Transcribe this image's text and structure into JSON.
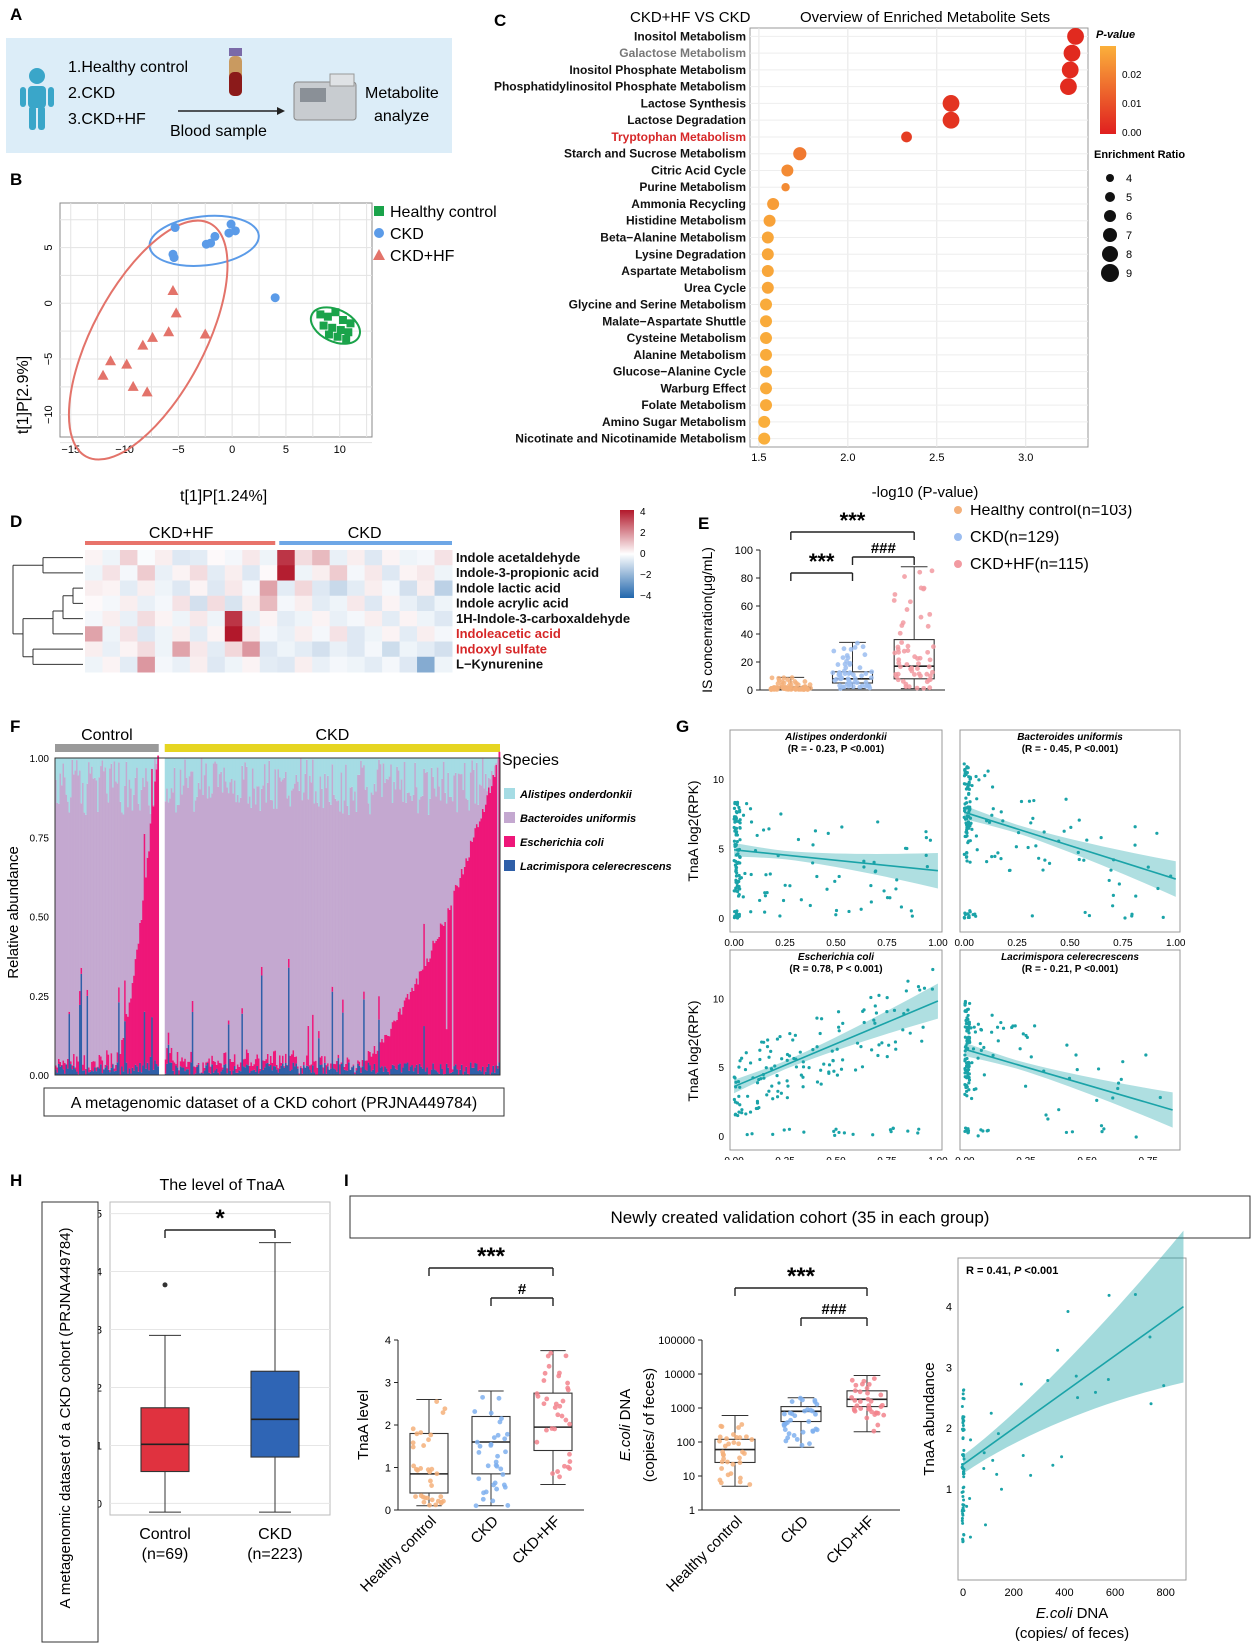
{
  "panel_labels": [
    "A",
    "B",
    "C",
    "D",
    "E",
    "F",
    "G",
    "H",
    "I"
  ],
  "panelA": {
    "groups": [
      "1.Healthy control",
      "2.CKD",
      "3.CKD+HF"
    ],
    "arrow_label": "Blood sample",
    "result_label_1": "Metabolite",
    "result_label_2": "analyze",
    "colors": {
      "background": "#dcedf8",
      "person": "#3aa6c9",
      "blood": "#8b1a1a"
    }
  },
  "chart_data": [
    {
      "id": "B",
      "type": "scatter",
      "title": "",
      "xlabel": "t[1]P[1.24%]",
      "ylabel": "t[1]P[2.9%]",
      "xlim": [
        -16,
        13
      ],
      "ylim": [
        -12,
        9
      ],
      "xticks": [
        -15,
        -10,
        -5,
        0,
        5,
        10
      ],
      "yticks": [
        -10,
        -5,
        0,
        5
      ],
      "grid": true,
      "legend": "right",
      "series": [
        {
          "name": "Healthy control",
          "color": "#1aa34a",
          "marker": "square",
          "x": [
            8.2,
            8.9,
            9.6,
            10.3,
            11.0,
            8.5,
            9.3,
            10.1,
            10.8,
            9.0,
            9.8,
            10.6
          ],
          "y": [
            -1.0,
            -1.2,
            -0.8,
            -1.5,
            -1.8,
            -2.0,
            -2.2,
            -2.4,
            -2.6,
            -2.8,
            -3.0,
            -3.2
          ]
        },
        {
          "name": "CKD",
          "color": "#5b9be8",
          "marker": "circle",
          "x": [
            -5.3,
            -5.5,
            -5.4,
            -2.4,
            -1.6,
            -0.3,
            -0.1,
            0.3,
            -2.0,
            4.0
          ],
          "y": [
            6.8,
            4.4,
            4.1,
            5.3,
            6.0,
            6.3,
            7.1,
            6.5,
            5.4,
            0.5
          ]
        },
        {
          "name": "CKD+HF",
          "color": "#e3736a",
          "marker": "triangle",
          "x": [
            -12.0,
            -11.3,
            -9.8,
            -9.2,
            -8.3,
            -7.9,
            -7.4,
            -5.9,
            -5.5,
            -5.2,
            -2.5
          ],
          "y": [
            -6.5,
            -5.2,
            -5.5,
            -7.5,
            -3.8,
            -8.0,
            -3.1,
            -2.6,
            1.1,
            -0.9,
            -2.8
          ]
        }
      ]
    },
    {
      "id": "C",
      "type": "scatter",
      "title": "CKD+HF VS CKD",
      "subtitle": "Overview of Enriched Metabolite Sets",
      "xlabel": "-log10 (P-value)",
      "xlim": [
        1.45,
        3.35
      ],
      "xticks": [
        1.5,
        2.0,
        2.5,
        3.0
      ],
      "grid": true,
      "legend": "right",
      "legend_pvalue_title": "P-value",
      "legend_pvalue_ticks": [
        "0.02",
        "0.01",
        "0.00"
      ],
      "legend_size_title": "Enrichment Ratio",
      "legend_size_values": [
        4,
        5,
        6,
        7,
        8,
        9
      ],
      "categories": [
        "Inositol Metabolism",
        "Galactose Metabolism",
        "Inositol Phosphate Metabolism",
        "Phosphatidylinositol Phosphate Metabolism",
        "Lactose Synthesis",
        "Lactose Degradation",
        "Tryptophan Metabolism",
        "Starch and Sucrose Metabolism",
        "Citric Acid Cycle",
        "Purine Metabolism",
        "Ammonia Recycling",
        "Histidine Metabolism",
        "Beta−Alanine Metabolism",
        "Lysine Degradation",
        "Aspartate Metabolism",
        "Urea Cycle",
        "Glycine and Serine Metabolism",
        "Malate−Aspartate Shuttle",
        "Cysteine Metabolism",
        "Alanine Metabolism",
        "Glucose−Alanine Cycle",
        "Warburg Effect",
        "Folate Metabolism",
        "Amino Sugar Metabolism",
        "Nicotinate and Nicotinamide Metabolism"
      ],
      "highlight": [
        "Tryptophan Metabolism"
      ],
      "grey": [
        "Galactose Metabolism"
      ],
      "x": [
        3.28,
        3.26,
        3.25,
        3.24,
        2.58,
        2.58,
        2.33,
        1.73,
        1.66,
        1.65,
        1.58,
        1.56,
        1.55,
        1.55,
        1.55,
        1.55,
        1.54,
        1.54,
        1.54,
        1.54,
        1.54,
        1.54,
        1.54,
        1.53,
        1.53
      ],
      "ratio": [
        7,
        7,
        7,
        7,
        7,
        7,
        4.5,
        5.5,
        5,
        3.5,
        5,
        5,
        5,
        5,
        5,
        5,
        5,
        5,
        5,
        5,
        5,
        5,
        5,
        5,
        5
      ],
      "pvalue": [
        0.0005,
        0.0005,
        0.0006,
        0.0006,
        0.0026,
        0.0026,
        0.0047,
        0.018,
        0.022,
        0.022,
        0.026,
        0.027,
        0.028,
        0.028,
        0.028,
        0.028,
        0.029,
        0.029,
        0.029,
        0.029,
        0.029,
        0.029,
        0.029,
        0.03,
        0.03
      ]
    },
    {
      "id": "D",
      "type": "heatmap",
      "column_groups": [
        {
          "name": "CKD+HF",
          "color": "#e8736b"
        },
        {
          "name": "CKD",
          "color": "#6ea7e6"
        }
      ],
      "rows": [
        "Indole acetaldehyde",
        "Indole-3-propionic acid",
        "Indole lactic acid",
        "Indole acrylic acid",
        "1H-Indole-3-carboxaldehyde",
        "Indoleacetic acid",
        "Indoxyl sulfate",
        "L−Kynurenine"
      ],
      "highlight_rows": [
        "Indoleacetic acid",
        "Indoxyl sulfate"
      ],
      "colorbar": [
        -4,
        -2,
        0,
        2,
        4
      ],
      "values": [
        [
          0.2,
          -0.3,
          0.8,
          -0.1,
          0.3,
          -0.6,
          -0.5,
          0.1,
          -0.2,
          0.4,
          -0.3,
          3.5,
          0.6,
          1.2,
          -0.4,
          0.3,
          -0.6,
          0.2,
          -0.3,
          -0.2,
          0.5
        ],
        [
          -0.3,
          0.5,
          -0.2,
          0.9,
          -0.4,
          0.2,
          0.6,
          -0.5,
          0.3,
          -0.6,
          0.1,
          3.9,
          -0.3,
          0.3,
          0.9,
          -0.2,
          0.4,
          -0.6,
          0.2,
          0.4,
          -0.3
        ],
        [
          0.3,
          0.2,
          -0.5,
          0.3,
          -0.3,
          -0.6,
          0.2,
          -0.6,
          0.4,
          -0.2,
          1.6,
          -0.5,
          0.7,
          -0.6,
          -1.0,
          -0.5,
          0.3,
          -0.2,
          -0.8,
          0.3,
          -1.2
        ],
        [
          0.1,
          -0.2,
          0.3,
          -0.4,
          -0.2,
          0.5,
          -0.8,
          0.6,
          -0.7,
          0.3,
          1.2,
          -0.2,
          0.3,
          -0.5,
          -0.3,
          0.4,
          -0.6,
          0.2,
          -0.4,
          -0.7,
          -0.3
        ],
        [
          -0.2,
          0.3,
          -0.4,
          0.6,
          0.2,
          -0.3,
          0.4,
          -0.3,
          3.5,
          -0.4,
          0.2,
          -0.5,
          -0.3,
          0.2,
          -0.4,
          -0.2,
          0.3,
          -0.5,
          0.2,
          -0.3,
          -0.6
        ],
        [
          1.6,
          -0.3,
          0.5,
          -0.6,
          -0.3,
          0.3,
          -0.5,
          0.2,
          4.0,
          0.4,
          -0.2,
          -0.4,
          0.3,
          -0.2,
          0.5,
          -0.6,
          -0.3,
          0.2,
          -0.5,
          0.3,
          -0.2
        ],
        [
          0.3,
          -0.4,
          0.2,
          0.6,
          -0.3,
          1.6,
          0.4,
          -0.5,
          0.7,
          1.8,
          -0.6,
          -0.3,
          -0.5,
          -0.8,
          -0.4,
          -0.6,
          -0.2,
          -0.9,
          -0.3,
          -0.5,
          -0.8
        ],
        [
          -0.3,
          0.2,
          -0.5,
          1.8,
          -0.2,
          -0.4,
          0.3,
          -0.6,
          -0.3,
          0.2,
          -0.5,
          -0.6,
          0.3,
          -0.4,
          -0.2,
          -0.3,
          -0.5,
          -0.2,
          -0.6,
          -2.2,
          -0.3
        ]
      ]
    },
    {
      "id": "E",
      "type": "box",
      "ylabel": "IS concenration(μg/mL)",
      "ylim": [
        0,
        100
      ],
      "yticks": [
        0,
        20,
        40,
        60,
        80,
        100
      ],
      "legend": "right",
      "series": [
        {
          "name": "Healthy control(n=103)",
          "color": "#f4b07a",
          "min": 0.2,
          "q1": 0.5,
          "median": 1.2,
          "q3": 2.2,
          "max": 9
        },
        {
          "name": "CKD(n=129)",
          "color": "#9bbdf0",
          "min": 1,
          "q1": 5,
          "median": 8,
          "q3": 13,
          "max": 34
        },
        {
          "name": "CKD+HF(n=115)",
          "color": "#f29aa1",
          "min": 1,
          "q1": 8,
          "median": 17,
          "q3": 36,
          "max": 88
        }
      ],
      "annotations": [
        {
          "from": 0,
          "to": 2,
          "text": "***"
        },
        {
          "from": 0,
          "to": 1,
          "text": "***"
        },
        {
          "from": 1,
          "to": 2,
          "text": "###"
        }
      ]
    },
    {
      "id": "F",
      "type": "bar",
      "title": "A metagenomic dataset of a CKD cohort (PRJNA449784)",
      "ylabel": "Relative abundance",
      "groups": [
        {
          "name": "Control",
          "color": "#9a9a9a",
          "n": 69
        },
        {
          "name": "CKD",
          "color": "#e6d521",
          "n": 223
        }
      ],
      "yticks": [
        "0.00",
        "0.25",
        "0.50",
        "0.75",
        "1.00"
      ],
      "legend_title": "Species",
      "legend": "right",
      "series": [
        {
          "name": "Alistipes onderdonkii",
          "color": "#a5dce4"
        },
        {
          "name": "Bacteroides uniformis",
          "color": "#c4a8d0"
        },
        {
          "name": "Escherichia coli",
          "color": "#ee1779"
        },
        {
          "name": "Lacrimispora celerecrescens",
          "color": "#2f5fa8"
        }
      ]
    },
    {
      "id": "G",
      "type": "scatter",
      "ylabel": "TnaA log2(RPK)",
      "line_color": "#1aa3a8",
      "subplots": [
        {
          "title": "Alistipes onderdonkii",
          "stat": "(R = - 0.23, P <0.001)",
          "xticks": [
            "0.00",
            "0.25",
            "0.50",
            "0.75",
            "1.00"
          ],
          "yticks": [
            0,
            5,
            10
          ],
          "fit": [
            [
              0,
              4.9
            ],
            [
              1,
              3.4
            ]
          ]
        },
        {
          "title": "Bacteroides uniformis",
          "stat": "(R = - 0.45, P <0.001)",
          "xticks": [
            "0.00",
            "0.25",
            "0.50",
            "0.75",
            "1.00"
          ],
          "yticks": [
            0,
            5,
            10
          ],
          "fit": [
            [
              0,
              7.6
            ],
            [
              1,
              2.8
            ]
          ]
        },
        {
          "title": "Escherichia coli",
          "stat": "(R = 0.78, P < 0.001)",
          "xticks": [
            "0.00",
            "0.25",
            "0.50",
            "0.75",
            "1.00"
          ],
          "yticks": [
            0,
            5,
            10
          ],
          "fit": [
            [
              0,
              3.6
            ],
            [
              1,
              9.8
            ]
          ]
        },
        {
          "title": "Lacrimispora celerecrescens",
          "stat": "(R = - 0.21, P <0.001)",
          "xticks": [
            "0.00",
            "0.25",
            "0.50",
            "0.75"
          ],
          "yticks": [],
          "fit": [
            [
              0,
              6.3
            ],
            [
              0.85,
              1.9
            ]
          ]
        }
      ]
    },
    {
      "id": "H",
      "type": "box",
      "title": "The level of TnaA",
      "ylabel": "A metagenomic dataset of a CKD cohort (PRJNA449784)",
      "ylim": [
        -0.2,
        5.2
      ],
      "yticks": [
        0,
        1,
        2,
        3,
        4,
        5
      ],
      "categories": [
        "Control\n(n=69)",
        "CKD\n(n=223)"
      ],
      "series": [
        {
          "name": "Control",
          "color": "#e0323f",
          "min": -0.15,
          "q1": 0.55,
          "median": 1.02,
          "q3": 1.65,
          "max": 2.9,
          "outliers": [
            3.77
          ]
        },
        {
          "name": "CKD",
          "color": "#2f65b5",
          "min": -0.15,
          "q1": 0.8,
          "median": 1.45,
          "q3": 2.28,
          "max": 4.5
        }
      ],
      "annotations": [
        {
          "from": 0,
          "to": 1,
          "text": "*"
        }
      ]
    },
    {
      "id": "I1",
      "type": "box",
      "ylabel": "TnaA level",
      "ylim": [
        0,
        4
      ],
      "yticks": [
        0,
        1,
        2,
        3,
        4
      ],
      "categories": [
        "Healthy control",
        "CKD",
        "CKD+HF"
      ],
      "series": [
        {
          "name": "Healthy control",
          "color": "#f4b07a",
          "min": 0.1,
          "q1": 0.4,
          "median": 0.85,
          "q3": 1.8,
          "max": 2.6
        },
        {
          "name": "CKD",
          "color": "#7fb0ef",
          "min": 0.1,
          "q1": 0.85,
          "median": 1.6,
          "q3": 2.2,
          "max": 2.8
        },
        {
          "name": "CKD+HF",
          "color": "#f2848d",
          "min": 0.6,
          "q1": 1.4,
          "median": 1.95,
          "q3": 2.75,
          "max": 3.75
        }
      ],
      "annotations": [
        {
          "from": 0,
          "to": 2,
          "text": "***"
        },
        {
          "from": 1,
          "to": 2,
          "text": "#"
        }
      ]
    },
    {
      "id": "I2",
      "type": "box",
      "ylabel_italic": "E.coli",
      "ylabel_rest": " DNA",
      "ylabel2": "(copies/ of feces)",
      "scale": "log",
      "ylim": [
        1,
        100000
      ],
      "yticks": [
        "1",
        "10",
        "100",
        "1000",
        "10000",
        "100000"
      ],
      "categories": [
        "Healthy control",
        "CKD",
        "CKD+HF"
      ],
      "series": [
        {
          "name": "Healthy control",
          "color": "#f4b07a",
          "min": 5,
          "q1": 25,
          "median": 60,
          "q3": 120,
          "max": 600
        },
        {
          "name": "CKD",
          "color": "#7fb0ef",
          "min": 70,
          "q1": 400,
          "median": 800,
          "q3": 1100,
          "max": 2000
        },
        {
          "name": "CKD+HF",
          "color": "#f2848d",
          "min": 200,
          "q1": 1100,
          "median": 1800,
          "q3": 3200,
          "max": 9000
        }
      ],
      "annotations": [
        {
          "from": 0,
          "to": 2,
          "text": "***"
        },
        {
          "from": 1,
          "to": 2,
          "text": "###"
        }
      ]
    },
    {
      "id": "I3",
      "type": "scatter",
      "stat_prefix": "R = 0.41, ",
      "stat_italic": "P",
      "stat_suffix": " <0.001",
      "xlabel_italic": "E.coli",
      "xlabel_rest": " DNA",
      "xlabel2": "(copies/ of feces)",
      "ylabel": "TnaA abundance",
      "xlim": [
        -20,
        880
      ],
      "ylim": [
        -0.5,
        4.8
      ],
      "xticks": [
        0,
        200,
        400,
        600,
        800
      ],
      "yticks": [
        1,
        2,
        3,
        4
      ],
      "fit": [
        [
          0,
          1.4
        ],
        [
          870,
          4.0
        ]
      ]
    }
  ],
  "panelI_banner": "Newly created validation cohort (35 in each group)"
}
